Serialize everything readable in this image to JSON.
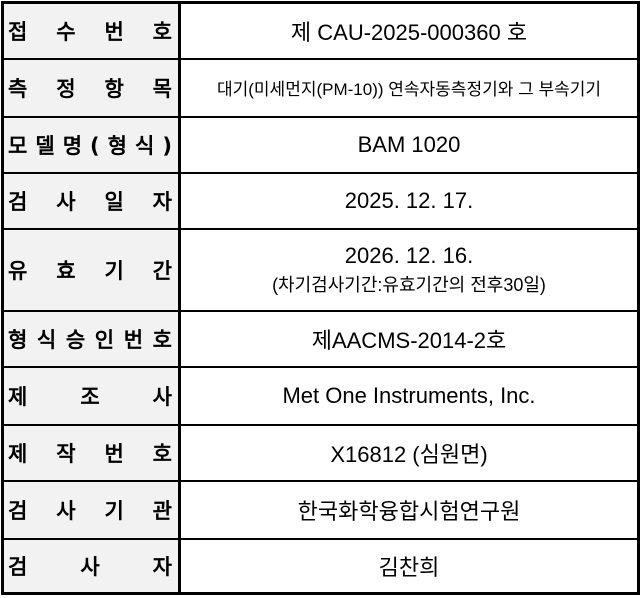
{
  "rows": [
    {
      "label": "접 수 번 호",
      "value": "제 CAU-2025-000360 호"
    },
    {
      "label": "측 정 항 목",
      "value": "대기(미세먼지(PM-10)) 연속자동측정기와 그 부속기기"
    },
    {
      "label": "모 델 명 ( 형 식 )",
      "value": "BAM 1020"
    },
    {
      "label": "검 사 일 자",
      "value": "2025. 12. 17."
    },
    {
      "label": "유 효 기 간",
      "value": "2026. 12. 16.",
      "note": "(차기검사기간:유효기간의 전후30일)"
    },
    {
      "label": "형 식 승 인 번 호",
      "value": "제AACMS-2014-2호"
    },
    {
      "label": "제 조 사",
      "value": "Met One Instruments, Inc."
    },
    {
      "label": "제 작 번 호",
      "value": "X16812 (심원면)"
    },
    {
      "label": "검 사 기 관",
      "value": "한국화학융합시험연구원"
    },
    {
      "label": "검 사 자",
      "value": "김찬희"
    }
  ]
}
